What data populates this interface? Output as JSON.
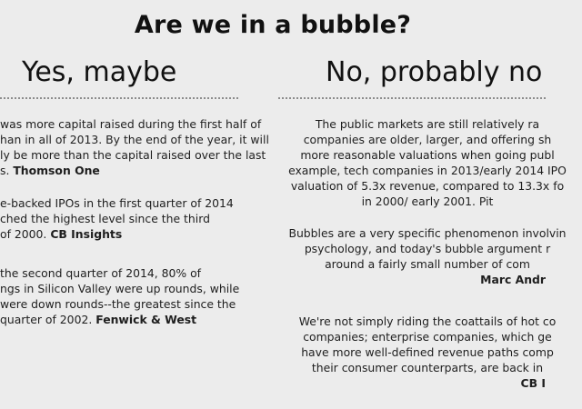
{
  "title": "Are we in a bubble?",
  "left": {
    "heading": "Yes, maybe",
    "paragraphs": [
      {
        "lines": [
          "was more capital raised during the first half of",
          "han in all of 2013. By the end of the year, it will",
          "ly be more than the capital raised over the last",
          "s."
        ],
        "source": "Thomson One"
      },
      {
        "lines": [
          "e-backed IPOs in the first quarter of 2014",
          "ched the highest level since the third",
          "of 2000."
        ],
        "source": "CB Insights"
      },
      {
        "lines": [
          "the second quarter of 2014, 80% of",
          "ngs in Silicon Valley were up rounds, while",
          "were down rounds--the greatest since the",
          "quarter of 2002."
        ],
        "source": "Fenwick & West"
      }
    ]
  },
  "right": {
    "heading": "No, probably no",
    "paragraphs": [
      {
        "lines": [
          "The public markets are still relatively ra",
          "companies are older, larger, and offering sh",
          "more reasonable valuations when going publ",
          "example, tech companies in 2013/early 2014 IPO",
          "valuation of 5.3x revenue, compared to 13.3x fo",
          "in 2000/ early 2001. Pit"
        ]
      },
      {
        "lines": [
          "Bubbles are a very specific phenomenon involvin",
          "psychology, and today's bubble argument r",
          "around a fairly small number of com",
          "Marc Andr"
        ]
      },
      {
        "lines": [
          "We're not simply riding the coattails of hot co",
          "companies; enterprise companies, which ge",
          "have more well-defined revenue paths comp",
          "their consumer counterparts, are back in",
          "CB I"
        ]
      }
    ]
  }
}
